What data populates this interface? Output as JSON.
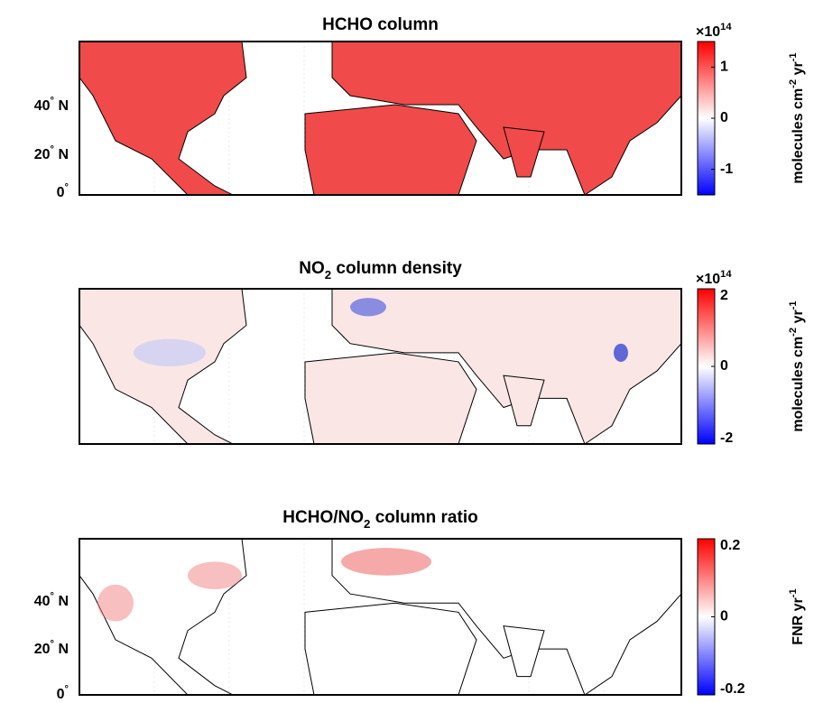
{
  "panels": [
    {
      "title": [
        {
          "text": "HCHO column"
        }
      ],
      "lat_labels": [
        {
          "text": "40",
          "sup": "°",
          "suffix": " N"
        },
        {
          "text": "20",
          "sup": "°",
          "suffix": " N"
        },
        {
          "text": "0",
          "sup": "°"
        }
      ],
      "colorbar": {
        "clim": [
          -1.5,
          1.5
        ],
        "ticks": [
          1,
          0,
          -1
        ],
        "multiplier": {
          "text": "×10",
          "sup": "14"
        },
        "label": [
          {
            "text": "molecules cm"
          },
          {
            "sup": "-2"
          },
          {
            "text": " yr"
          },
          {
            "sup": "-1"
          }
        ]
      }
    },
    {
      "title": [
        {
          "text": "NO"
        },
        {
          "sub": "2"
        },
        {
          "text": " column density"
        }
      ],
      "lat_labels": [],
      "colorbar": {
        "clim": [
          -2,
          2
        ],
        "ticks": [
          2,
          0,
          -2
        ],
        "multiplier": {
          "text": "×10",
          "sup": "14"
        },
        "label": [
          {
            "text": "molecules cm"
          },
          {
            "sup": "-2"
          },
          {
            "text": " yr"
          },
          {
            "sup": "-1"
          }
        ]
      }
    },
    {
      "title": [
        {
          "text": "HCHO/NO"
        },
        {
          "sub": "2"
        },
        {
          "text": " column ratio"
        }
      ],
      "lat_labels": [
        {
          "text": "40",
          "sup": "°",
          "suffix": " N"
        },
        {
          "text": "20",
          "sup": "°",
          "suffix": " N"
        },
        {
          "text": "0",
          "sup": "°"
        }
      ],
      "colorbar": {
        "clim": [
          -0.2,
          0.2
        ],
        "ticks": [
          0.2,
          0,
          -0.2
        ],
        "label": [
          {
            "text": "FNR yr"
          },
          {
            "sup": "-1"
          }
        ]
      }
    }
  ]
}
